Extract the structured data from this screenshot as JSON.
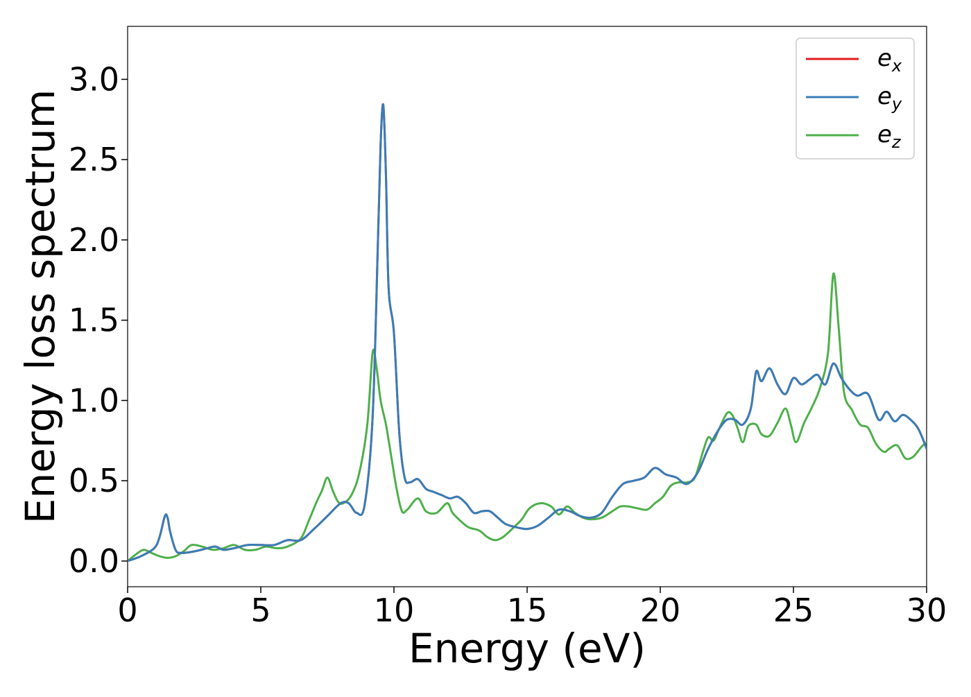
{
  "chart_data": {
    "type": "line",
    "xlabel": "Energy (eV)",
    "ylabel": "Energy loss spectrum",
    "xlim": [
      0,
      30
    ],
    "ylim": [
      -0.16,
      3.33
    ],
    "xticks": [
      0,
      5,
      10,
      15,
      20,
      25,
      30
    ],
    "xtick_labels": [
      "0",
      "5",
      "10",
      "15",
      "20",
      "25",
      "30"
    ],
    "yticks": [
      0.0,
      0.5,
      1.0,
      1.5,
      2.0,
      2.5,
      3.0
    ],
    "ytick_labels": [
      "0.0",
      "0.5",
      "1.0",
      "1.5",
      "2.0",
      "2.5",
      "3.0"
    ],
    "grid": false,
    "legend_position": "top-right",
    "series": [
      {
        "name": "e_x",
        "label_base": "e",
        "label_sub": "x",
        "color": "#e41a1c",
        "x": [
          0,
          0.5,
          1.0,
          1.2,
          1.4,
          1.5,
          1.6,
          1.8,
          2.0,
          2.5,
          3.0,
          3.3,
          3.6,
          4.0,
          4.5,
          5.0,
          5.5,
          6.0,
          6.5,
          7.0,
          7.5,
          8.0,
          8.3,
          8.6,
          8.9,
          9.2,
          9.4,
          9.5,
          9.6,
          9.7,
          9.8,
          10.0,
          10.2,
          10.4,
          10.6,
          10.9,
          11.2,
          11.5,
          11.8,
          12.1,
          12.4,
          12.7,
          13.0,
          13.3,
          13.6,
          13.9,
          14.2,
          14.6,
          15.0,
          15.4,
          15.8,
          16.2,
          16.6,
          17.0,
          17.4,
          17.8,
          18.2,
          18.6,
          19.0,
          19.4,
          19.8,
          20.2,
          20.6,
          21.0,
          21.4,
          21.8,
          22.2,
          22.5,
          22.8,
          23.1,
          23.4,
          23.6,
          23.8,
          24.1,
          24.4,
          24.7,
          25.0,
          25.3,
          25.6,
          25.9,
          26.2,
          26.5,
          26.8,
          27.1,
          27.4,
          27.8,
          28.2,
          28.5,
          28.8,
          29.1,
          29.4,
          29.7,
          30.0
        ],
        "y": [
          0.0,
          0.03,
          0.08,
          0.15,
          0.28,
          0.27,
          0.18,
          0.07,
          0.05,
          0.06,
          0.08,
          0.09,
          0.07,
          0.08,
          0.1,
          0.1,
          0.1,
          0.13,
          0.13,
          0.2,
          0.28,
          0.36,
          0.36,
          0.3,
          0.35,
          0.9,
          2.0,
          2.6,
          2.84,
          2.4,
          1.7,
          1.42,
          0.8,
          0.52,
          0.49,
          0.51,
          0.45,
          0.43,
          0.41,
          0.39,
          0.4,
          0.36,
          0.3,
          0.31,
          0.31,
          0.27,
          0.23,
          0.21,
          0.2,
          0.22,
          0.27,
          0.32,
          0.31,
          0.28,
          0.27,
          0.3,
          0.4,
          0.48,
          0.5,
          0.52,
          0.58,
          0.54,
          0.52,
          0.48,
          0.55,
          0.7,
          0.82,
          0.88,
          0.88,
          0.85,
          0.95,
          1.18,
          1.12,
          1.2,
          1.1,
          1.04,
          1.14,
          1.1,
          1.13,
          1.16,
          1.1,
          1.23,
          1.14,
          1.07,
          1.03,
          1.04,
          0.88,
          0.93,
          0.87,
          0.91,
          0.88,
          0.82,
          0.7
        ]
      },
      {
        "name": "e_y",
        "label_base": "e",
        "label_sub": "y",
        "color": "#377eb8",
        "x": [
          0,
          0.5,
          1.0,
          1.2,
          1.4,
          1.5,
          1.6,
          1.8,
          2.0,
          2.5,
          3.0,
          3.3,
          3.6,
          4.0,
          4.5,
          5.0,
          5.5,
          6.0,
          6.5,
          7.0,
          7.5,
          8.0,
          8.3,
          8.6,
          8.9,
          9.2,
          9.4,
          9.5,
          9.6,
          9.7,
          9.8,
          10.0,
          10.2,
          10.4,
          10.6,
          10.9,
          11.2,
          11.5,
          11.8,
          12.1,
          12.4,
          12.7,
          13.0,
          13.3,
          13.6,
          13.9,
          14.2,
          14.6,
          15.0,
          15.4,
          15.8,
          16.2,
          16.6,
          17.0,
          17.4,
          17.8,
          18.2,
          18.6,
          19.0,
          19.4,
          19.8,
          20.2,
          20.6,
          21.0,
          21.4,
          21.8,
          22.2,
          22.5,
          22.8,
          23.1,
          23.4,
          23.6,
          23.8,
          24.1,
          24.4,
          24.7,
          25.0,
          25.3,
          25.6,
          25.9,
          26.2,
          26.5,
          26.8,
          27.1,
          27.4,
          27.8,
          28.2,
          28.5,
          28.8,
          29.1,
          29.4,
          29.7,
          30.0
        ],
        "y": [
          0.0,
          0.03,
          0.08,
          0.15,
          0.28,
          0.27,
          0.18,
          0.07,
          0.05,
          0.06,
          0.08,
          0.09,
          0.07,
          0.08,
          0.1,
          0.1,
          0.1,
          0.13,
          0.13,
          0.2,
          0.28,
          0.36,
          0.36,
          0.3,
          0.35,
          0.9,
          2.0,
          2.6,
          2.84,
          2.4,
          1.7,
          1.42,
          0.8,
          0.52,
          0.49,
          0.51,
          0.45,
          0.43,
          0.41,
          0.39,
          0.4,
          0.36,
          0.3,
          0.31,
          0.31,
          0.27,
          0.23,
          0.21,
          0.2,
          0.22,
          0.27,
          0.32,
          0.31,
          0.28,
          0.27,
          0.3,
          0.4,
          0.48,
          0.5,
          0.52,
          0.58,
          0.54,
          0.52,
          0.48,
          0.55,
          0.7,
          0.82,
          0.88,
          0.88,
          0.85,
          0.95,
          1.18,
          1.12,
          1.2,
          1.1,
          1.04,
          1.14,
          1.1,
          1.13,
          1.16,
          1.1,
          1.23,
          1.14,
          1.07,
          1.03,
          1.04,
          0.88,
          0.93,
          0.87,
          0.91,
          0.88,
          0.82,
          0.7
        ]
      },
      {
        "name": "e_z",
        "label_base": "e",
        "label_sub": "z",
        "color": "#4daf4a",
        "x": [
          0,
          0.3,
          0.6,
          0.9,
          1.2,
          1.5,
          1.8,
          2.1,
          2.4,
          2.8,
          3.2,
          3.6,
          4.0,
          4.4,
          4.8,
          5.2,
          5.6,
          6.0,
          6.5,
          6.8,
          7.1,
          7.3,
          7.5,
          7.7,
          7.9,
          8.1,
          8.4,
          8.7,
          9.0,
          9.2,
          9.35,
          9.5,
          9.7,
          9.9,
          10.1,
          10.3,
          10.5,
          10.9,
          11.2,
          11.6,
          12.0,
          12.2,
          12.5,
          12.8,
          13.2,
          13.5,
          13.8,
          14.1,
          14.5,
          14.8,
          15.1,
          15.5,
          15.9,
          16.2,
          16.5,
          16.8,
          17.1,
          17.4,
          17.8,
          18.2,
          18.5,
          18.8,
          19.1,
          19.5,
          19.8,
          20.1,
          20.4,
          20.7,
          21.0,
          21.3,
          21.6,
          21.8,
          22.0,
          22.2,
          22.5,
          22.7,
          22.9,
          23.1,
          23.3,
          23.6,
          23.8,
          24.1,
          24.4,
          24.7,
          24.9,
          25.1,
          25.4,
          25.7,
          26.0,
          26.3,
          26.5,
          26.7,
          26.9,
          27.2,
          27.5,
          27.8,
          28.1,
          28.4,
          28.6,
          28.9,
          29.2,
          29.5,
          29.8,
          30.0
        ],
        "y": [
          0.0,
          0.04,
          0.07,
          0.05,
          0.03,
          0.02,
          0.03,
          0.06,
          0.1,
          0.09,
          0.07,
          0.08,
          0.1,
          0.07,
          0.07,
          0.09,
          0.08,
          0.09,
          0.14,
          0.25,
          0.37,
          0.44,
          0.52,
          0.44,
          0.37,
          0.36,
          0.41,
          0.55,
          0.85,
          1.3,
          1.2,
          1.0,
          0.85,
          0.65,
          0.45,
          0.31,
          0.32,
          0.39,
          0.31,
          0.3,
          0.36,
          0.3,
          0.25,
          0.21,
          0.19,
          0.15,
          0.13,
          0.15,
          0.21,
          0.26,
          0.33,
          0.36,
          0.34,
          0.29,
          0.34,
          0.3,
          0.27,
          0.26,
          0.27,
          0.31,
          0.34,
          0.34,
          0.33,
          0.32,
          0.36,
          0.4,
          0.47,
          0.49,
          0.49,
          0.52,
          0.68,
          0.77,
          0.75,
          0.82,
          0.92,
          0.91,
          0.83,
          0.74,
          0.84,
          0.85,
          0.79,
          0.78,
          0.86,
          0.95,
          0.85,
          0.74,
          0.86,
          0.96,
          1.08,
          1.3,
          1.79,
          1.45,
          1.05,
          0.94,
          0.85,
          0.83,
          0.73,
          0.68,
          0.7,
          0.72,
          0.64,
          0.65,
          0.71,
          0.74
        ]
      }
    ]
  }
}
